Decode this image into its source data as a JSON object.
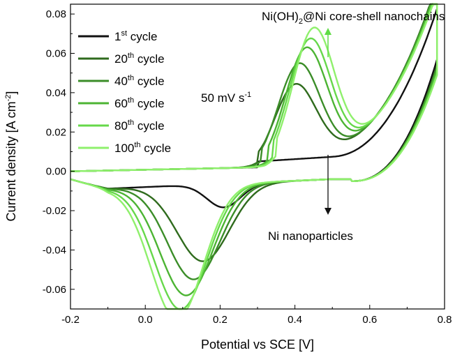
{
  "chart_data": {
    "type": "line",
    "xlabel": "Potential vs SCE [V]",
    "ylabel": {
      "main": "Current density [A cm",
      "sup": "-2",
      "close": "]"
    },
    "xlim": [
      -0.2,
      0.8
    ],
    "ylim": [
      -0.07,
      0.085
    ],
    "xticks": [
      "-0.2",
      "0.0",
      "0.2",
      "0.4",
      "0.6",
      "0.8"
    ],
    "yticks": [
      "-0.06",
      "-0.04",
      "-0.02",
      "0.00",
      "0.02",
      "0.04",
      "0.06",
      "0.08"
    ],
    "grid": false,
    "legend": {
      "position": "top-left",
      "entries": [
        {
          "num": "1",
          "sup": "st",
          "rest": " cycle",
          "color": "#111111"
        },
        {
          "num": "20",
          "sup": "th",
          "rest": " cycle",
          "color": "#2f6b1d"
        },
        {
          "num": "40",
          "sup": "th",
          "rest": " cycle",
          "color": "#3b8d28"
        },
        {
          "num": "60",
          "sup": "th",
          "rest": " cycle",
          "color": "#4cb433"
        },
        {
          "num": "80",
          "sup": "th",
          "rest": " cycle",
          "color": "#66d84a"
        },
        {
          "num": "100",
          "sup": "th",
          "rest": " cycle",
          "color": "#8ff06c"
        }
      ]
    },
    "annotations": {
      "scan_rate": {
        "main": "50 mV s",
        "sup": "-1"
      },
      "top": {
        "pre": "Ni(OH)",
        "sub": "2",
        "post": "@Ni core-shell nanochains",
        "color": "#5fdc45"
      },
      "bottom": {
        "text": "Ni nanoparticles"
      }
    },
    "series": [
      {
        "color": "#111111",
        "anodic_peak": 0.0,
        "anodic_peak_x": 0.32,
        "cathodic_peak": -0.012,
        "cathodic_peak_x": 0.21,
        "end_y": 0.092
      },
      {
        "color": "#2f6b1d",
        "anodic_peak": 0.038,
        "anodic_peak_x": 0.4,
        "cathodic_peak": -0.039,
        "cathodic_peak_x": 0.155,
        "end_y": 0.089
      },
      {
        "color": "#3b8d28",
        "anodic_peak": 0.048,
        "anodic_peak_x": 0.41,
        "cathodic_peak": -0.048,
        "cathodic_peak_x": 0.13,
        "end_y": 0.088
      },
      {
        "color": "#4cb433",
        "anodic_peak": 0.055,
        "anodic_peak_x": 0.43,
        "cathodic_peak": -0.056,
        "cathodic_peak_x": 0.11,
        "end_y": 0.087
      },
      {
        "color": "#66d84a",
        "anodic_peak": 0.059,
        "anodic_peak_x": 0.44,
        "cathodic_peak": -0.063,
        "cathodic_peak_x": 0.095,
        "end_y": 0.085
      },
      {
        "color": "#8ff06c",
        "anodic_peak": 0.064,
        "anodic_peak_x": 0.45,
        "cathodic_peak": -0.068,
        "cathodic_peak_x": 0.085,
        "end_y": 0.084
      }
    ]
  }
}
